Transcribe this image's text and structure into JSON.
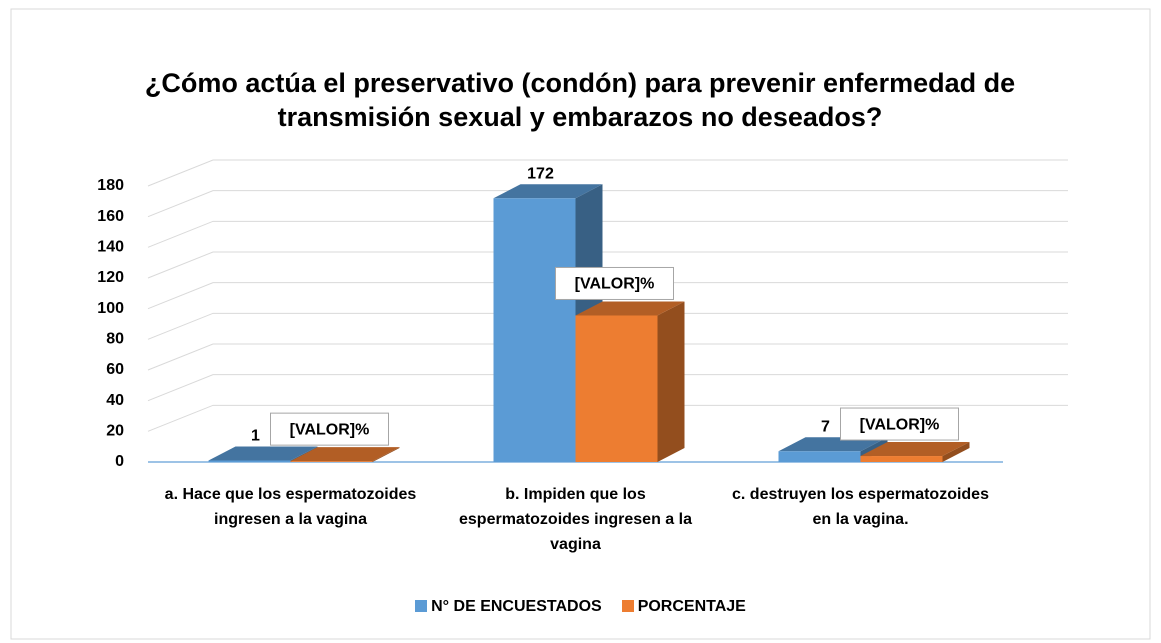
{
  "chart_data": {
    "type": "bar3d",
    "title": "¿Cómo actúa el preservativo (condón) para prevenir enfermedad de transmisión sexual y embarazos no deseados?",
    "categories": [
      "a.    Hace que los espermatozoides ingresen a la vagina",
      "b.    Impiden que los espermatozoides ingresen a la vagina",
      "c.    destruyen los espermatozoides en la vagina."
    ],
    "series": [
      {
        "name": "N° DE ENCUESTADOS",
        "color": "#5b9bd5",
        "values": [
          1,
          172,
          7
        ]
      },
      {
        "name": "PORCENTAJE",
        "color": "#ed7d31",
        "values": [
          0.56,
          95.56,
          3.89
        ],
        "value_labels": [
          "[VALOR]%",
          "[VALOR]%",
          "[VALOR]%"
        ]
      }
    ],
    "ylim": [
      0,
      180
    ],
    "yticks": [
      0,
      20,
      40,
      60,
      80,
      100,
      120,
      140,
      160,
      180
    ],
    "grid": true,
    "legend": "bottom"
  }
}
